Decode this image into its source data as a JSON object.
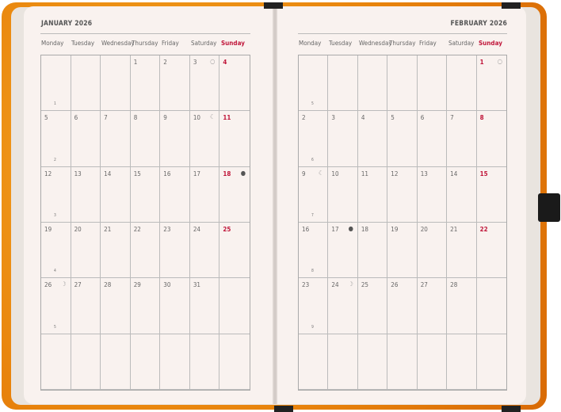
{
  "colors": {
    "cover": "#e8830c",
    "page": "#f9f2ef",
    "sunday": "#c0163a"
  },
  "weekdays": [
    "Monday",
    "Tuesday",
    "Wednesday",
    "Thursday",
    "Friday",
    "Saturday",
    "Sunday"
  ],
  "months": [
    {
      "title": "JANUARY 2026",
      "weeks": [
        1,
        2,
        3,
        4,
        5,
        ""
      ],
      "days": [
        "",
        "",
        "",
        "1",
        "2",
        "3",
        "4",
        "5",
        "6",
        "7",
        "8",
        "9",
        "10",
        "11",
        "12",
        "13",
        "14",
        "15",
        "16",
        "17",
        "18",
        "19",
        "20",
        "21",
        "22",
        "23",
        "24",
        "25",
        "26",
        "27",
        "28",
        "29",
        "30",
        "31",
        "",
        "",
        "",
        "",
        "",
        "",
        "",
        ""
      ],
      "moons": {
        "3": "full-moon",
        "10": "last-quarter",
        "18": "new-moon",
        "26": "first-quarter"
      }
    },
    {
      "title": "FEBRUARY 2026",
      "weeks": [
        5,
        6,
        7,
        8,
        9,
        ""
      ],
      "days": [
        "",
        "",
        "",
        "",
        "",
        "",
        "1",
        "2",
        "3",
        "4",
        "5",
        "6",
        "7",
        "8",
        "9",
        "10",
        "11",
        "12",
        "13",
        "14",
        "15",
        "16",
        "17",
        "18",
        "19",
        "20",
        "21",
        "22",
        "23",
        "24",
        "25",
        "26",
        "27",
        "28",
        "",
        "",
        "",
        "",
        "",
        "",
        "",
        ""
      ],
      "moons": {
        "1": "full-moon",
        "9": "last-quarter",
        "17": "new-moon",
        "24": "first-quarter"
      }
    }
  ]
}
